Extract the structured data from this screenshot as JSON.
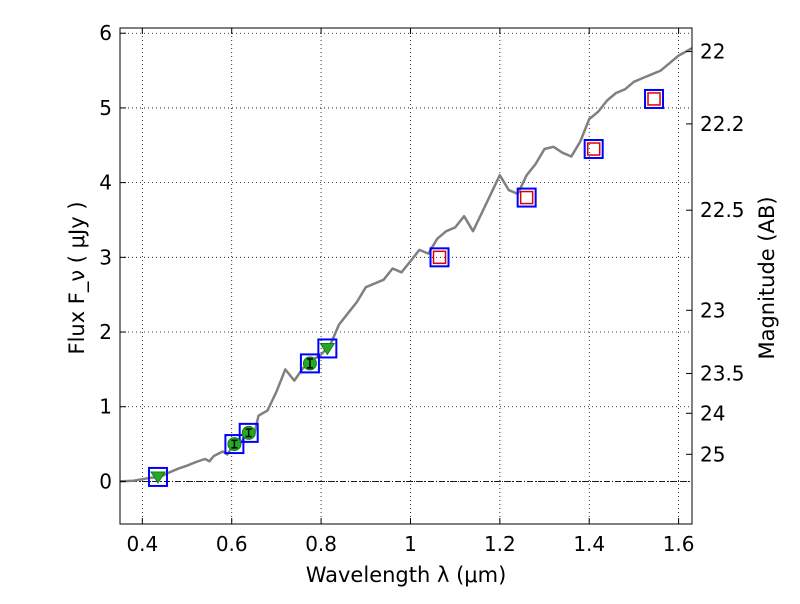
{
  "chart_data": {
    "type": "scatter",
    "xlabel": "Wavelength  λ (μm)",
    "ylabel": "Flux  F_ν  ( μJy )",
    "y2label": "Magnitude (AB)",
    "xlim": [
      0.35,
      1.63
    ],
    "ylim": [
      -0.57,
      6.07
    ],
    "grid": true,
    "x_ticks": [
      0.4,
      0.6,
      0.8,
      1.0,
      1.2,
      1.4,
      1.6
    ],
    "x_tick_labels": [
      "0.4",
      "0.6",
      "0.8",
      "1",
      "1.2",
      "1.4",
      "1.6"
    ],
    "y_ticks": [
      0,
      1,
      2,
      3,
      4,
      5,
      6
    ],
    "y_tick_labels": [
      "0",
      "1",
      "2",
      "3",
      "4",
      "5",
      "6"
    ],
    "y2_ticks": [
      {
        "mag": 22,
        "label": "22"
      },
      {
        "mag": 22.2,
        "label": "22.2"
      },
      {
        "mag": 22.5,
        "label": "22.5"
      },
      {
        "mag": 23,
        "label": "23"
      },
      {
        "mag": 23.5,
        "label": "23.5"
      },
      {
        "mag": 24,
        "label": "24"
      },
      {
        "mag": 25,
        "label": "25"
      }
    ],
    "model_spectrum": {
      "color": "#808080",
      "x": [
        0.35,
        0.38,
        0.4,
        0.42,
        0.44,
        0.46,
        0.48,
        0.5,
        0.52,
        0.54,
        0.55,
        0.56,
        0.58,
        0.59,
        0.6,
        0.62,
        0.63,
        0.65,
        0.66,
        0.68,
        0.7,
        0.72,
        0.74,
        0.76,
        0.78,
        0.8,
        0.82,
        0.84,
        0.86,
        0.88,
        0.9,
        0.92,
        0.94,
        0.96,
        0.98,
        1.0,
        1.02,
        1.04,
        1.06,
        1.08,
        1.1,
        1.12,
        1.14,
        1.16,
        1.18,
        1.2,
        1.22,
        1.24,
        1.26,
        1.28,
        1.3,
        1.32,
        1.34,
        1.36,
        1.38,
        1.4,
        1.42,
        1.44,
        1.46,
        1.48,
        1.5,
        1.52,
        1.54,
        1.56,
        1.58,
        1.6,
        1.63
      ],
      "y": [
        0.0,
        0.01,
        0.03,
        0.05,
        0.06,
        0.12,
        0.17,
        0.21,
        0.26,
        0.3,
        0.27,
        0.34,
        0.4,
        0.36,
        0.45,
        0.52,
        0.6,
        0.62,
        0.88,
        0.95,
        1.2,
        1.5,
        1.35,
        1.52,
        1.62,
        1.7,
        1.82,
        2.1,
        2.25,
        2.4,
        2.6,
        2.65,
        2.7,
        2.85,
        2.8,
        2.95,
        3.1,
        3.05,
        3.25,
        3.35,
        3.4,
        3.55,
        3.35,
        3.6,
        3.85,
        4.1,
        3.9,
        3.85,
        4.1,
        4.25,
        4.45,
        4.48,
        4.4,
        4.35,
        4.55,
        4.85,
        4.95,
        5.1,
        5.2,
        5.25,
        5.35,
        5.4,
        5.45,
        5.5,
        5.6,
        5.7,
        5.8
      ]
    },
    "model_photometry": {
      "marker": "square",
      "color": "#0000ff",
      "points": [
        {
          "x": 0.435,
          "y": 0.06
        },
        {
          "x": 0.606,
          "y": 0.5
        },
        {
          "x": 0.638,
          "y": 0.65
        },
        {
          "x": 0.775,
          "y": 1.58
        },
        {
          "x": 0.814,
          "y": 1.78
        },
        {
          "x": 1.065,
          "y": 3.0
        },
        {
          "x": 1.26,
          "y": 3.8
        },
        {
          "x": 1.41,
          "y": 4.45
        },
        {
          "x": 1.545,
          "y": 5.12
        }
      ]
    },
    "observed_detections": {
      "marker": "circle",
      "color": "#22aa22",
      "points": [
        {
          "x": 0.606,
          "y": 0.5,
          "yerr": 0.05
        },
        {
          "x": 0.638,
          "y": 0.65,
          "yerr": 0.05
        },
        {
          "x": 0.775,
          "y": 1.58,
          "yerr": 0.06
        }
      ]
    },
    "upper_limits_green": {
      "marker": "triangle-down",
      "color": "#22aa22",
      "points": [
        {
          "x": 0.435,
          "y": 0.06
        },
        {
          "x": 0.814,
          "y": 1.78
        }
      ]
    },
    "upper_limits_red": {
      "marker": "open-square",
      "color": "#dd0000",
      "points": [
        {
          "x": 1.065,
          "y": 3.0
        },
        {
          "x": 1.26,
          "y": 3.8
        },
        {
          "x": 1.41,
          "y": 4.45
        },
        {
          "x": 1.545,
          "y": 5.12
        }
      ]
    },
    "colors": {
      "frame": "#000000",
      "grid": "#000000",
      "zero_line": "#000000"
    }
  }
}
